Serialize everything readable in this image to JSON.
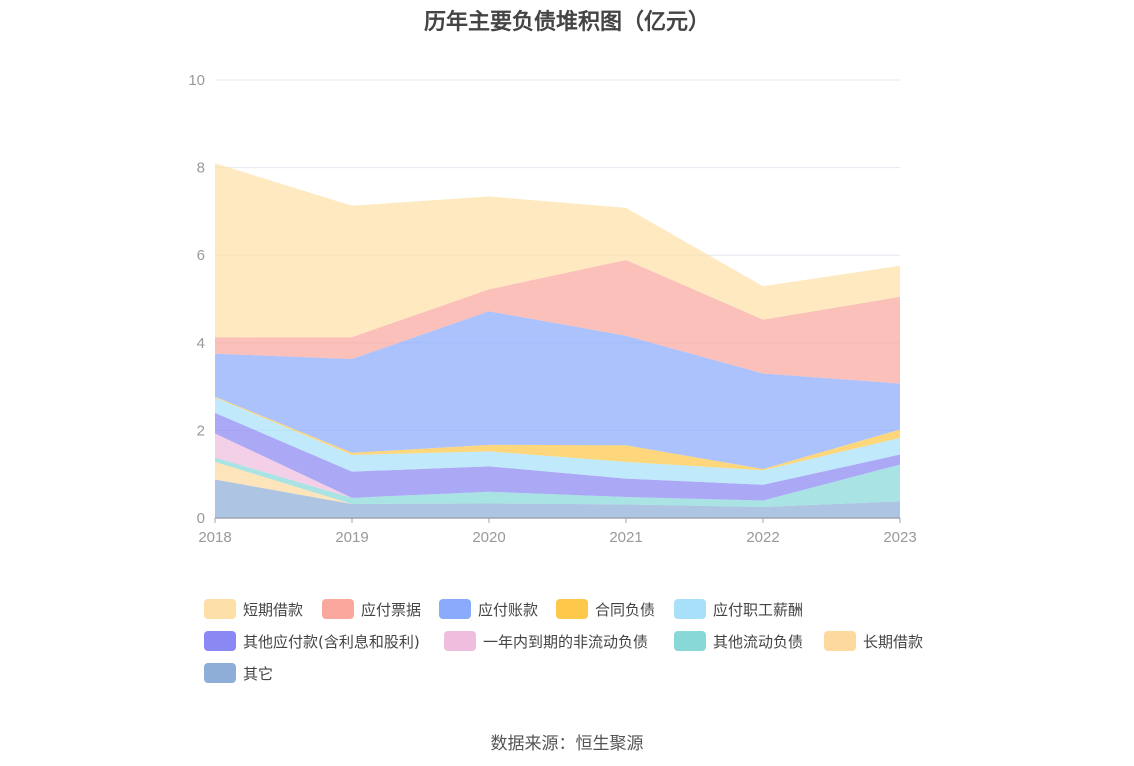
{
  "chart_data": {
    "type": "area",
    "stacked": true,
    "title": "历年主要负债堆积图（亿元）",
    "xlabel": "",
    "ylabel": "",
    "x": [
      "2018",
      "2019",
      "2020",
      "2021",
      "2022",
      "2023"
    ],
    "ylim": [
      0,
      10
    ],
    "yticks": [
      "0",
      "2",
      "4",
      "6",
      "8",
      "10"
    ],
    "grid": true,
    "legend_position": "bottom",
    "series": [
      {
        "name": "其它",
        "color": "#8eaed8",
        "values": [
          0.88,
          0.32,
          0.33,
          0.31,
          0.25,
          0.38
        ]
      },
      {
        "name": "长期借款",
        "color": "#fdd9a0",
        "values": [
          0.4,
          0.0,
          0.0,
          0.0,
          0.0,
          0.0
        ]
      },
      {
        "name": "其他流动负债",
        "color": "#88d8d8",
        "values": [
          0.1,
          0.14,
          0.27,
          0.17,
          0.15,
          0.84
        ]
      },
      {
        "name": "一年内到期的非流动负债",
        "color": "#efbedf",
        "values": [
          0.55,
          0.0,
          0.0,
          0.0,
          0.0,
          0.0
        ]
      },
      {
        "name": "其他应付款(含利息和股利)",
        "color": "#8a88f2",
        "values": [
          0.47,
          0.6,
          0.58,
          0.42,
          0.36,
          0.23
        ]
      },
      {
        "name": "应付职工薪酬",
        "color": "#a8e0fa",
        "values": [
          0.35,
          0.38,
          0.34,
          0.38,
          0.33,
          0.38
        ]
      },
      {
        "name": "合同负债",
        "color": "#fec84a",
        "values": [
          0.02,
          0.05,
          0.15,
          0.38,
          0.03,
          0.19
        ]
      },
      {
        "name": "应付账款",
        "color": "#8aaafc",
        "values": [
          0.98,
          2.14,
          3.05,
          2.5,
          2.18,
          1.05
        ]
      },
      {
        "name": "应付票据",
        "color": "#faa89e",
        "values": [
          0.37,
          0.5,
          0.5,
          1.73,
          1.23,
          1.98
        ]
      },
      {
        "name": "短期借款",
        "color": "#fde0a8",
        "values": [
          3.98,
          3.0,
          2.12,
          1.19,
          0.76,
          0.71
        ]
      }
    ],
    "legend_order": [
      "短期借款",
      "应付票据",
      "应付账款",
      "合同负债",
      "应付职工薪酬",
      "其他应付款(含利息和股利)",
      "一年内到期的非流动负债",
      "其他流动负债",
      "长期借款",
      "其它"
    ]
  },
  "source": "数据来源：恒生聚源"
}
